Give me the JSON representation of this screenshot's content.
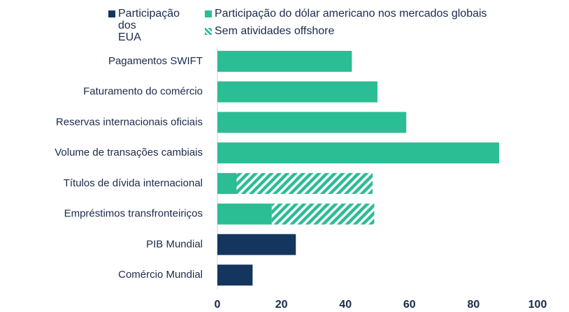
{
  "chart_data": {
    "type": "bar",
    "orientation": "horizontal",
    "stacked": true,
    "categories": [
      "Pagamentos SWIFT",
      "Faturamento do comércio",
      "Reservas internacionais oficiais",
      "Volume de transações cambiais",
      "Títulos de dívida internacional",
      "Empréstimos transfronteiriços",
      "PIB Mundial",
      "Comércio Mundial"
    ],
    "series": [
      {
        "name": "Participação dos EUA",
        "color": "#14365e",
        "values": [
          null,
          null,
          null,
          null,
          null,
          null,
          24.5,
          11
        ]
      },
      {
        "name": "Participação do dólar americano nos mercados globais",
        "color": "#2bbd94",
        "values": [
          42,
          50,
          59,
          88,
          6,
          17,
          null,
          null
        ]
      },
      {
        "name": "Sem atividades offshore",
        "color": "#2bbd94",
        "pattern": "hatch",
        "values": [
          null,
          null,
          null,
          null,
          42.5,
          32,
          null,
          null
        ]
      }
    ],
    "xlim": [
      0,
      100
    ],
    "xticks": [
      0,
      20,
      40,
      60,
      80,
      100
    ],
    "legend": "top"
  }
}
